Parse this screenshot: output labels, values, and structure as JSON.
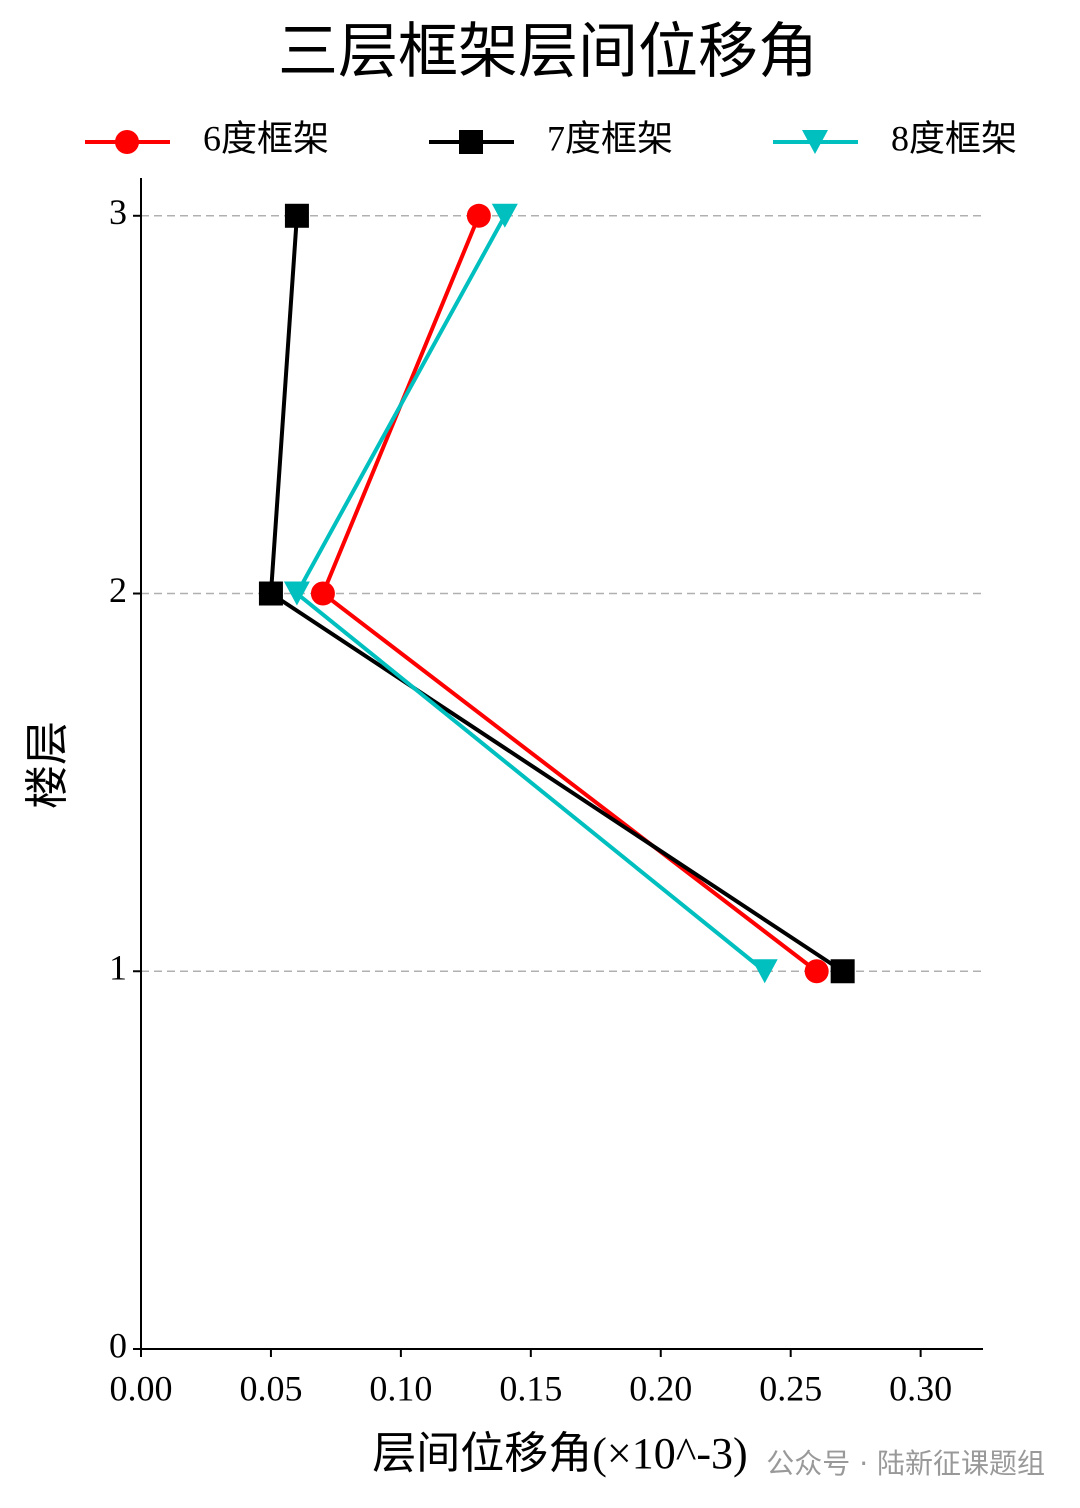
{
  "chart_data": {
    "type": "line",
    "title": "三层框架层间位移角",
    "x_label": "层间位移角(×10^-3)",
    "y_label": "楼层",
    "y": [
      1,
      2,
      3
    ],
    "series": [
      {
        "name": "6度框架",
        "color": "#ff0000",
        "marker": "circle",
        "values": [
          0.26,
          0.07,
          0.13
        ]
      },
      {
        "name": "7度框架",
        "color": "#000000",
        "marker": "square",
        "values": [
          0.27,
          0.05,
          0.06
        ]
      },
      {
        "name": "8度框架",
        "color": "#00bfbf",
        "marker": "triangle-down",
        "values": [
          0.24,
          0.06,
          0.14
        ]
      }
    ],
    "xlim": [
      0,
      0.324
    ],
    "ylim": [
      0,
      3.1
    ],
    "xticks": [
      {
        "value": 0,
        "label": "0.00"
      },
      {
        "value": 0.05,
        "label": "0.05"
      },
      {
        "value": 0.1,
        "label": "0.10"
      },
      {
        "value": 0.15,
        "label": "0.15"
      },
      {
        "value": 0.2,
        "label": "0.20"
      },
      {
        "value": 0.25,
        "label": "0.25"
      },
      {
        "value": 0.3,
        "label": "0.30"
      }
    ],
    "yticks": [
      0,
      1,
      2,
      3
    ],
    "grid": "y",
    "legend": "top",
    "watermark": "公众号 · 陆新征课题组"
  }
}
